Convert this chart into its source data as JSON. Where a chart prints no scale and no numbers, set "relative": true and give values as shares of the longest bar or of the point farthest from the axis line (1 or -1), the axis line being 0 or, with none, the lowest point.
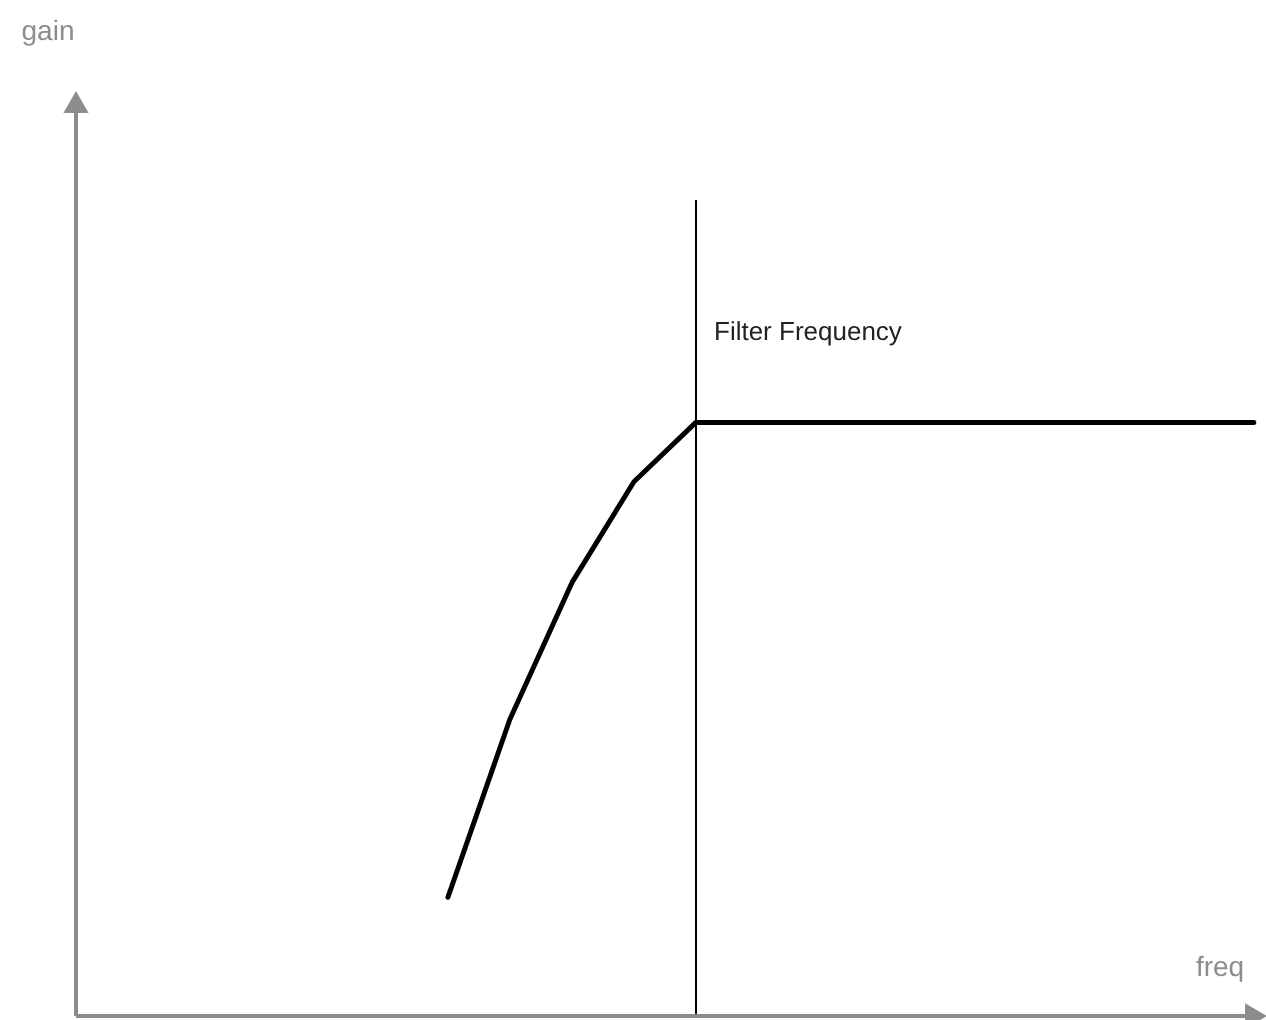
{
  "chart_data": {
    "type": "line",
    "relative": true,
    "xlabel": "freq",
    "categories": [
      null,
      null,
      null,
      null,
      null,
      null,
      null,
      null,
      null,
      null,
      null,
      null,
      null,
      null,
      null,
      null,
      null,
      null,
      null,
      null
    ],
    "series": [
      {
        "color": "#000000",
        "values": [
          null,
          null,
          null,
          null,
          null,
          null,
          0.2,
          0.5,
          0.73,
          0.9,
          1,
          1,
          1,
          1,
          1,
          1,
          1,
          1,
          1,
          1
        ]
      }
    ],
    "annotations": [
      "Filter Frequency",
      "gain"
    ],
    "tick_labels": false,
    "marker": "none",
    "line_style": "solid"
  }
}
